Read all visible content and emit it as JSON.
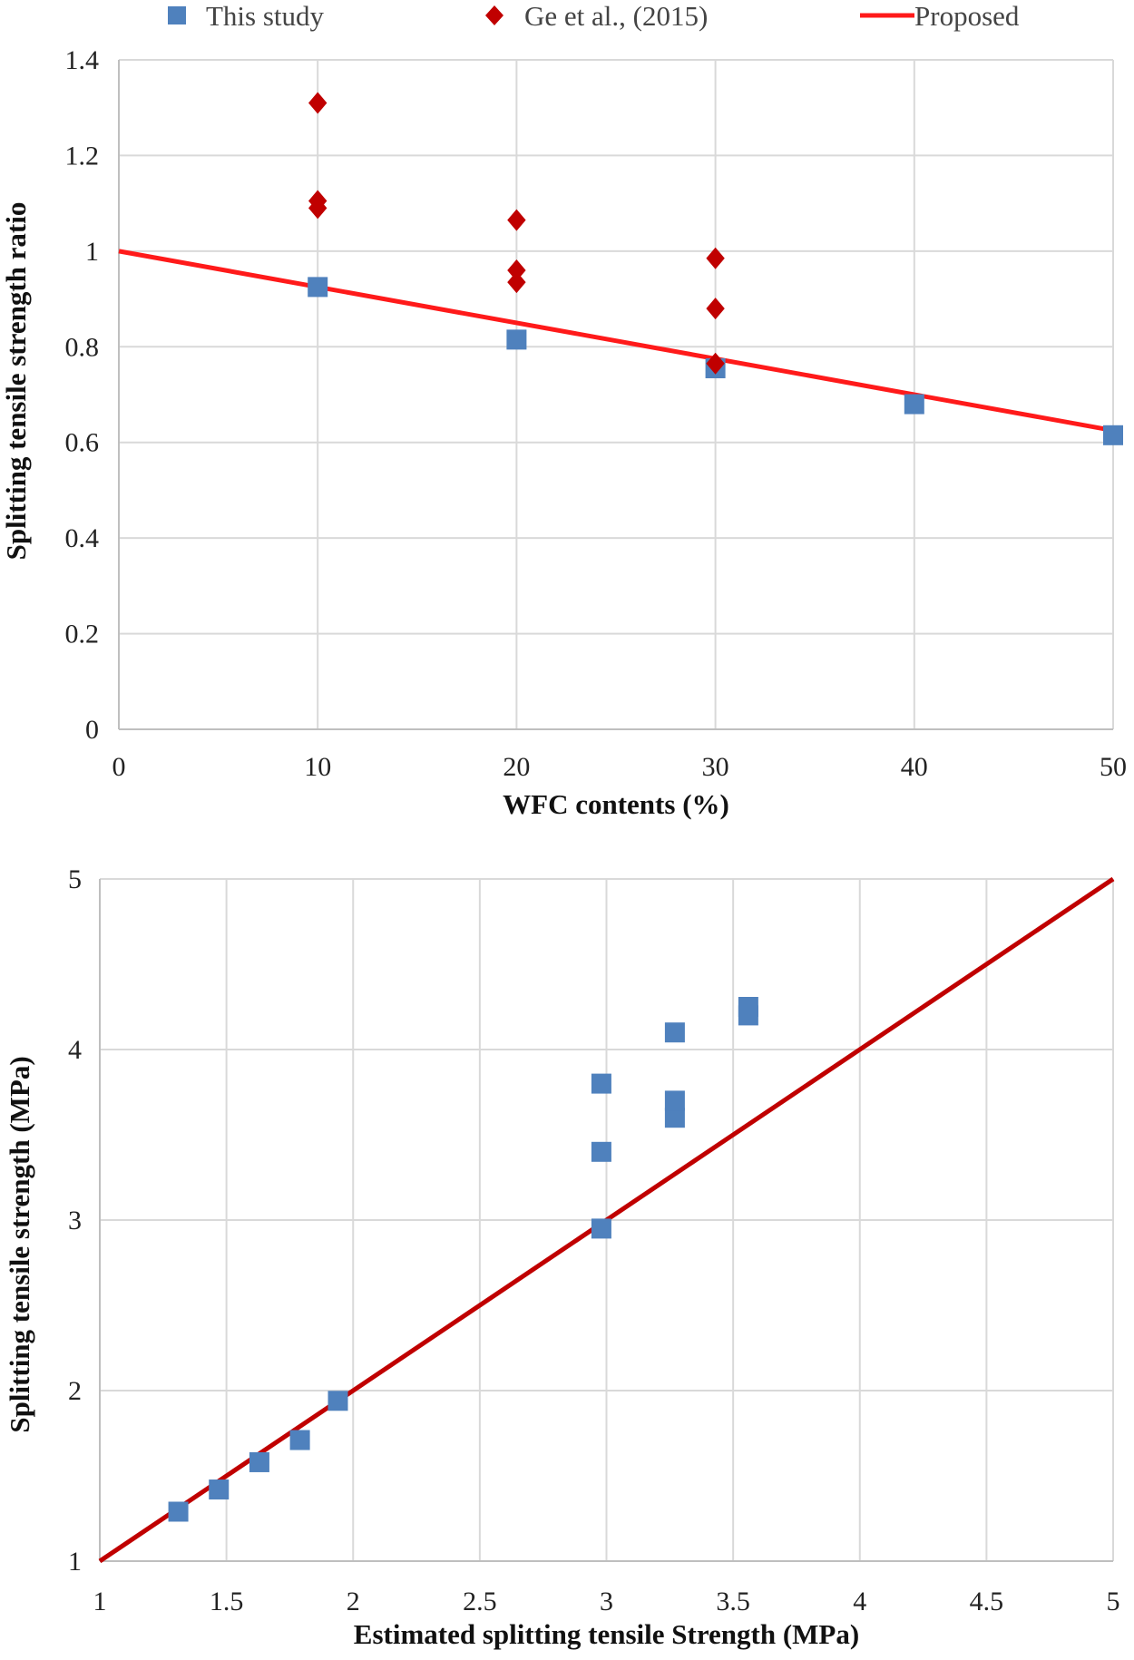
{
  "chart_data": [
    {
      "type": "scatter",
      "xlabel": "WFC contents (%)",
      "ylabel": "Splitting tensile strength ratio",
      "xlim": [
        0,
        50
      ],
      "ylim": [
        0,
        1.4
      ],
      "xticks": [
        "0",
        "10",
        "20",
        "30",
        "40",
        "50"
      ],
      "yticks": [
        "0",
        "0.2",
        "0.4",
        "0.6",
        "0.8",
        "1",
        "1.2",
        "1.4"
      ],
      "grid": true,
      "legend_placement": "top",
      "series": [
        {
          "name": "This study",
          "marker": "square",
          "color": "#4f81bd",
          "x": [
            10,
            20,
            30,
            40,
            50
          ],
          "y": [
            0.925,
            0.815,
            0.755,
            0.68,
            0.615
          ]
        },
        {
          "name": "Ge et al., (2015)",
          "marker": "diamond",
          "color": "#c00000",
          "x": [
            10,
            10,
            10,
            20,
            20,
            20,
            30,
            30,
            30
          ],
          "y": [
            1.31,
            1.105,
            1.09,
            1.065,
            0.96,
            0.935,
            0.985,
            0.88,
            0.765
          ]
        },
        {
          "name": "Proposed",
          "marker": "line",
          "color": "#ff1a1a",
          "x": [
            0,
            50
          ],
          "y": [
            1.0,
            0.625
          ]
        }
      ]
    },
    {
      "type": "scatter",
      "xlabel": "Estimated splitting tensile Strength (MPa)",
      "ylabel": "Splitting tensile strength (MPa)",
      "xlim": [
        1,
        5
      ],
      "ylim": [
        1,
        5
      ],
      "xticks": [
        "1",
        "1.5",
        "2",
        "2.5",
        "3",
        "3.5",
        "4",
        "4.5",
        "5"
      ],
      "yticks": [
        "1",
        "2",
        "3",
        "4",
        "5"
      ],
      "grid": true,
      "series": [
        {
          "marker": "square",
          "color": "#4f81bd",
          "x": [
            1.31,
            1.47,
            1.63,
            1.79,
            1.94,
            2.98,
            2.98,
            2.98,
            3.27,
            3.27,
            3.27,
            3.56,
            3.56
          ],
          "y": [
            1.29,
            1.42,
            1.58,
            1.71,
            1.94,
            2.95,
            3.4,
            3.8,
            3.6,
            3.7,
            4.1,
            4.2,
            4.25
          ]
        },
        {
          "marker": "line",
          "color": "#c00000",
          "x": [
            1,
            5
          ],
          "y": [
            1,
            5
          ]
        }
      ]
    }
  ]
}
